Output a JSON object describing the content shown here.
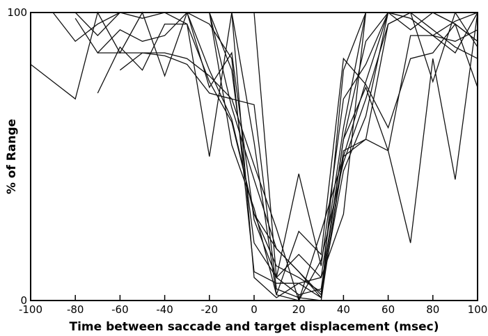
{
  "chart_data": {
    "type": "line",
    "title": "",
    "xlabel": "Time between saccade and target displacement (msec)",
    "ylabel": "% of Range",
    "xlim": [
      -100,
      100
    ],
    "ylim": [
      0,
      100
    ],
    "x_ticks": [
      -100,
      -80,
      -60,
      -40,
      -20,
      0,
      20,
      40,
      60,
      80,
      100
    ],
    "x_tick_labels": [
      "-100",
      "-80",
      "-60",
      "-40",
      "-20",
      "0",
      "20",
      "40",
      "60",
      "80",
      "100"
    ],
    "y_ticks": [
      0,
      100
    ],
    "y_tick_labels": [
      "0",
      "100"
    ],
    "grid": false,
    "legend": "none",
    "line_color": "#111111",
    "series": [
      {
        "x": [
          -100,
          -80,
          -70,
          -60,
          -50,
          -40,
          -30,
          -20,
          -10,
          0,
          10,
          20,
          30,
          40,
          50,
          60,
          70,
          80,
          90,
          100
        ],
        "y": [
          100,
          100,
          100,
          100,
          100,
          100,
          100,
          100,
          100,
          8,
          1,
          6,
          1,
          80,
          100,
          100,
          100,
          100,
          100,
          100
        ]
      },
      {
        "x": [
          -100,
          -90,
          -80,
          -70,
          -60,
          -50,
          -40,
          -30,
          -20,
          -10,
          0,
          10,
          20,
          30,
          40,
          50,
          60,
          70,
          80,
          90,
          100
        ],
        "y": [
          100,
          100,
          100,
          100,
          100,
          100,
          100,
          100,
          100,
          100,
          100,
          8,
          2,
          4,
          56,
          90,
          100,
          98,
          92,
          86,
          100
        ]
      },
      {
        "x": [
          -90,
          -80,
          -70,
          -60,
          -50,
          -40,
          -30,
          -20,
          -10,
          0,
          10,
          20,
          30,
          40,
          50,
          60,
          70,
          80,
          90,
          100
        ],
        "y": [
          100,
          90,
          96,
          100,
          98,
          100,
          100,
          80,
          63,
          30,
          12,
          8,
          3,
          45,
          64,
          100,
          98,
          92,
          97,
          100
        ]
      },
      {
        "x": [
          -80,
          -70,
          -60,
          -50,
          -40,
          -30,
          -20,
          -10,
          0,
          10,
          20,
          30,
          40,
          50,
          60,
          70,
          80,
          90,
          100
        ],
        "y": [
          100,
          92,
          100,
          100,
          100,
          96,
          76,
          62,
          30,
          18,
          10,
          1,
          50,
          76,
          100,
          100,
          94,
          88,
          84
        ]
      },
      {
        "x": [
          -80,
          -70,
          -60,
          -50,
          -40,
          -30,
          -20,
          -10,
          0,
          10,
          20,
          30,
          40,
          50,
          60,
          70,
          80,
          90,
          100
        ],
        "y": [
          98,
          86,
          94,
          90,
          92,
          100,
          74,
          86,
          28,
          8,
          44,
          12,
          70,
          82,
          100,
          94,
          100,
          100,
          88
        ]
      },
      {
        "x": [
          -70,
          -60,
          -50,
          -40,
          -30,
          -20,
          -10,
          0,
          10,
          20,
          30,
          40,
          50,
          60,
          70,
          80,
          90,
          100
        ],
        "y": [
          86,
          86,
          86,
          86,
          84,
          78,
          70,
          68,
          4,
          1,
          0,
          52,
          56,
          96,
          100,
          100,
          96,
          90
        ]
      },
      {
        "x": [
          -100,
          -80,
          -70,
          -60,
          -50,
          -40,
          -30,
          -20,
          -10,
          0,
          10,
          20,
          30,
          40,
          50,
          60,
          70,
          80,
          90,
          100
        ],
        "y": [
          82,
          70,
          100,
          86,
          100,
          78,
          100,
          100,
          67,
          42,
          18,
          10,
          2,
          56,
          74,
          52,
          20,
          84,
          42,
          100
        ]
      },
      {
        "x": [
          -70,
          -60,
          -50,
          -40,
          -30,
          -20,
          -10,
          0,
          10,
          20,
          30,
          40,
          50,
          60,
          70,
          80,
          90,
          100
        ],
        "y": [
          72,
          88,
          80,
          96,
          96,
          50,
          100,
          55,
          2,
          24,
          16,
          84,
          75,
          60,
          84,
          86,
          96,
          74
        ]
      },
      {
        "x": [
          -60,
          -50,
          -40,
          -30,
          -20,
          -10,
          0,
          10,
          20,
          30,
          40,
          50,
          60,
          70,
          80,
          90,
          100
        ],
        "y": [
          80,
          86,
          85,
          82,
          72,
          70,
          47,
          25,
          0,
          24,
          50,
          56,
          52,
          92,
          92,
          90,
          94
        ]
      },
      {
        "x": [
          -70,
          -60,
          -50,
          -40,
          -30,
          -20,
          -10,
          0,
          10,
          20,
          30,
          40,
          50,
          60,
          70,
          80,
          90,
          100
        ],
        "y": [
          100,
          100,
          100,
          100,
          100,
          100,
          54,
          32,
          2,
          0,
          14,
          48,
          70,
          96,
          100,
          100,
          96,
          90
        ]
      },
      {
        "x": [
          -100,
          -80,
          -70,
          -60,
          -50,
          -40,
          -30,
          -20,
          -10,
          0,
          10,
          20,
          30,
          40,
          50,
          60,
          70,
          80,
          90,
          100
        ],
        "y": [
          100,
          100,
          100,
          100,
          100,
          100,
          100,
          96,
          84,
          10,
          6,
          6,
          8,
          30,
          100,
          100,
          100,
          76,
          100,
          100
        ]
      },
      {
        "x": [
          -90,
          -80,
          -70,
          -60,
          -50,
          -40,
          -30,
          -20,
          -10,
          0,
          10,
          20,
          30,
          40,
          50,
          60,
          70,
          80,
          90,
          100
        ],
        "y": [
          100,
          100,
          100,
          100,
          100,
          100,
          100,
          100,
          80,
          20,
          8,
          16,
          8,
          60,
          100,
          100,
          100,
          100,
          100,
          100
        ]
      }
    ]
  }
}
